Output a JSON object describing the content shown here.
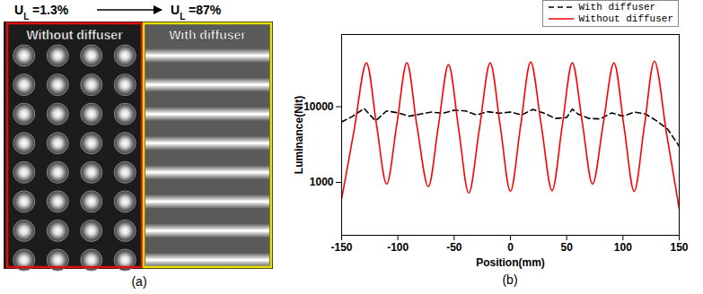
{
  "photo": {
    "label": "(a)",
    "before": {
      "symbol": "U",
      "subscript": "L",
      "text": " =1.3%"
    },
    "after": {
      "symbol": "U",
      "subscript": "L",
      "text": " =87%"
    },
    "regions": [
      {
        "text": "Without diffuser",
        "color": "#e01010"
      },
      {
        "text": "With diffuser",
        "color": "#e8e000"
      }
    ],
    "led_rows": 8,
    "led_columns": 4
  },
  "chart_data": {
    "type": "line",
    "label": "(b)",
    "xlabel": "Position(mm)",
    "ylabel": "Luminance(Nit)",
    "xlim": [
      -150,
      150
    ],
    "xticks": [
      -150,
      -100,
      -50,
      0,
      50,
      100,
      150
    ],
    "ylim": [
      200,
      90000
    ],
    "yticks": [
      1000,
      10000
    ],
    "log": "y",
    "grid": false,
    "legend": "top right",
    "series": [
      {
        "name": "With diffuser",
        "color": "#000000",
        "line_style": "dashed",
        "x": [
          -150,
          -140,
          -130,
          -120,
          -110,
          -100,
          -90,
          -80,
          -70,
          -60,
          -50,
          -40,
          -30,
          -20,
          -10,
          0,
          10,
          20,
          30,
          40,
          50,
          55,
          60,
          70,
          80,
          90,
          100,
          110,
          120,
          130,
          140,
          150
        ],
        "values": [
          6300,
          7500,
          9500,
          6500,
          8800,
          8300,
          7500,
          8000,
          8500,
          8200,
          9000,
          8800,
          7800,
          8600,
          8200,
          8500,
          7800,
          9200,
          8200,
          7000,
          7200,
          9300,
          8000,
          7000,
          6900,
          8300,
          7500,
          8500,
          8000,
          6500,
          5000,
          3000
        ]
      },
      {
        "name": "Without diffuser",
        "color": "#ff0000",
        "line_style": "solid",
        "x": [
          -150,
          -139,
          -128,
          -119,
          -110,
          -101,
          -92,
          -83,
          -73,
          -64,
          -55,
          -46,
          -37,
          -27.5,
          -18,
          -9,
          0,
          9,
          18,
          27.5,
          37,
          46,
          55,
          64,
          73,
          82.5,
          92,
          101,
          110,
          119,
          128,
          139,
          150
        ],
        "values": [
          600,
          4800,
          38000,
          5800,
          950,
          5800,
          38000,
          5500,
          880,
          5600,
          36000,
          5100,
          720,
          5200,
          38000,
          5500,
          760,
          5500,
          39000,
          5600,
          780,
          5500,
          38000,
          6000,
          950,
          6000,
          38000,
          5400,
          760,
          5500,
          40000,
          4200,
          450
        ]
      }
    ]
  }
}
